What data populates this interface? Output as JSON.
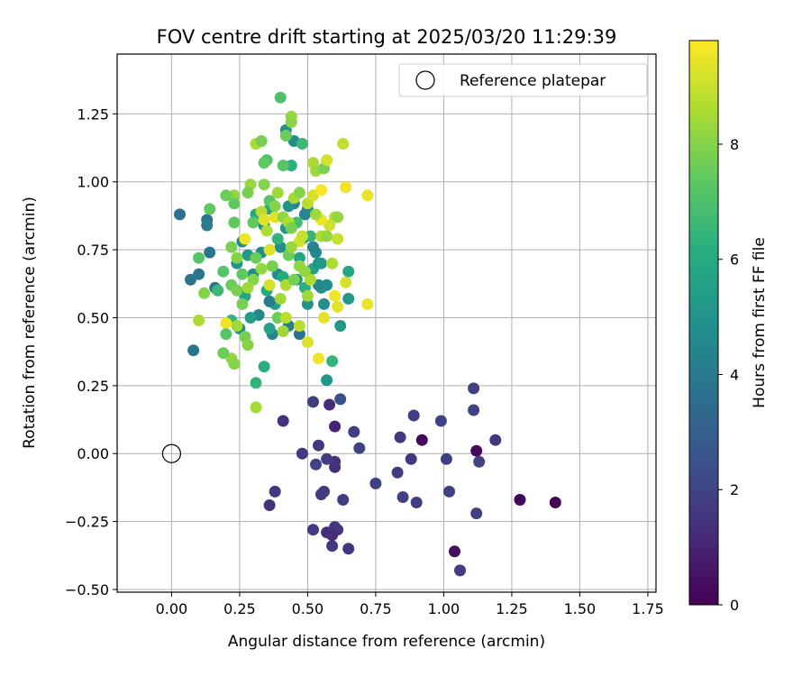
{
  "chart_data": {
    "type": "scatter",
    "title": "FOV centre drift starting at 2025/03/20 11:29:39",
    "xlabel": "Angular distance from reference (arcmin)",
    "ylabel": "Rotation from reference (arcmin)",
    "xlim": [
      -0.2,
      1.78
    ],
    "ylim": [
      -0.51,
      1.47
    ],
    "x_ticks": [
      0.0,
      0.25,
      0.5,
      0.75,
      1.0,
      1.25,
      1.5,
      1.75
    ],
    "x_tick_labels": [
      "0.00",
      "0.25",
      "0.50",
      "0.75",
      "1.00",
      "1.25",
      "1.50",
      "1.75"
    ],
    "y_ticks": [
      -0.5,
      -0.25,
      0.0,
      0.25,
      0.5,
      0.75,
      1.0,
      1.25
    ],
    "y_tick_labels": [
      "−0.50",
      "−0.25",
      "0.00",
      "0.25",
      "0.50",
      "0.75",
      "1.00",
      "1.25"
    ],
    "grid": true,
    "legend": {
      "position": "top-right",
      "entries": [
        {
          "label": "Reference platepar",
          "marker": "open-circle",
          "x": 0.0,
          "y": 0.0
        }
      ]
    },
    "colorbar": {
      "label": "Hours from first FF file",
      "range": [
        0,
        9.8
      ],
      "ticks": [
        0,
        2,
        4,
        6,
        8
      ],
      "colormap": "viridis"
    },
    "points": [
      [
        0.92,
        0.05,
        0.2
      ],
      [
        1.12,
        0.01,
        0.2
      ],
      [
        1.28,
        -0.17,
        0.2
      ],
      [
        1.41,
        -0.18,
        0.1
      ],
      [
        1.04,
        -0.36,
        0.4
      ],
      [
        1.19,
        0.05,
        1.6
      ],
      [
        1.06,
        -0.43,
        1.8
      ],
      [
        1.12,
        -0.22,
        1.9
      ],
      [
        1.13,
        -0.03,
        1.9
      ],
      [
        1.11,
        0.16,
        2.0
      ],
      [
        1.11,
        0.24,
        1.9
      ],
      [
        0.99,
        0.12,
        2.0
      ],
      [
        1.01,
        -0.02,
        1.8
      ],
      [
        1.02,
        -0.14,
        1.9
      ],
      [
        0.89,
        0.14,
        1.8
      ],
      [
        0.9,
        -0.18,
        1.8
      ],
      [
        0.88,
        -0.02,
        1.6
      ],
      [
        0.84,
        0.06,
        1.7
      ],
      [
        0.83,
        -0.07,
        1.8
      ],
      [
        0.85,
        -0.16,
        1.9
      ],
      [
        0.75,
        -0.11,
        2.0
      ],
      [
        0.69,
        0.02,
        2.0
      ],
      [
        0.67,
        0.08,
        1.8
      ],
      [
        0.63,
        -0.17,
        1.8
      ],
      [
        0.65,
        -0.35,
        1.5
      ],
      [
        0.61,
        -0.28,
        1.5
      ],
      [
        0.6,
        -0.27,
        1.6
      ],
      [
        0.59,
        -0.34,
        1.7
      ],
      [
        0.59,
        -0.3,
        1.2
      ],
      [
        0.57,
        -0.29,
        1.3
      ],
      [
        0.6,
        -0.05,
        1.3
      ],
      [
        0.6,
        -0.03,
        1.4
      ],
      [
        0.58,
        0.18,
        1.3
      ],
      [
        0.6,
        0.1,
        1.0
      ],
      [
        0.62,
        0.2,
        2.5
      ],
      [
        0.55,
        -0.15,
        1.6
      ],
      [
        0.57,
        -0.02,
        1.8
      ],
      [
        0.56,
        -0.14,
        1.7
      ],
      [
        0.54,
        0.03,
        1.6
      ],
      [
        0.53,
        -0.04,
        2.0
      ],
      [
        0.52,
        -0.28,
        1.7
      ],
      [
        0.52,
        0.19,
        1.8
      ],
      [
        0.48,
        0.0,
        1.7
      ],
      [
        0.41,
        0.12,
        1.4
      ],
      [
        0.38,
        -0.14,
        1.6
      ],
      [
        0.36,
        -0.19,
        1.5
      ],
      [
        0.03,
        0.88,
        3.7
      ],
      [
        0.07,
        0.64,
        3.8
      ],
      [
        0.08,
        0.38,
        3.8
      ],
      [
        0.1,
        0.66,
        3.8
      ],
      [
        0.13,
        0.86,
        3.8
      ],
      [
        0.13,
        0.84,
        4.1
      ],
      [
        0.14,
        0.74,
        3.8
      ],
      [
        0.16,
        0.61,
        4.0
      ],
      [
        0.17,
        0.6,
        6.6
      ],
      [
        0.57,
        0.27,
        5.2
      ],
      [
        0.59,
        0.34,
        6.4
      ],
      [
        0.62,
        0.47,
        5.2
      ],
      [
        0.65,
        0.57,
        5.2
      ],
      [
        0.65,
        0.67,
        5.8
      ],
      [
        0.57,
        0.62,
        4.8
      ],
      [
        0.55,
        0.61,
        4.9
      ],
      [
        0.54,
        0.62,
        4.6
      ],
      [
        0.56,
        0.55,
        4.7
      ],
      [
        0.53,
        0.74,
        4.5
      ],
      [
        0.52,
        0.68,
        5.6
      ],
      [
        0.54,
        0.7,
        5.0
      ],
      [
        0.52,
        0.76,
        4.4
      ],
      [
        0.5,
        0.9,
        4.6
      ],
      [
        0.49,
        0.88,
        4.4
      ],
      [
        0.48,
        0.79,
        5.0
      ],
      [
        0.47,
        0.72,
        5.7
      ],
      [
        0.46,
        0.64,
        5.0
      ],
      [
        0.45,
        0.92,
        4.4
      ],
      [
        0.44,
        1.06,
        6.2
      ],
      [
        0.43,
        0.91,
        5.0
      ],
      [
        0.42,
        0.83,
        5.2
      ],
      [
        0.42,
        1.19,
        5.0
      ],
      [
        0.4,
        0.76,
        4.7
      ],
      [
        0.39,
        0.66,
        4.8
      ],
      [
        0.38,
        0.55,
        5.4
      ],
      [
        0.37,
        0.44,
        4.4
      ],
      [
        0.36,
        0.9,
        5.6
      ],
      [
        0.36,
        0.56,
        4.2
      ],
      [
        0.36,
        0.46,
        5.6
      ],
      [
        0.35,
        0.6,
        5.8
      ],
      [
        0.34,
        0.84,
        4.6
      ],
      [
        0.33,
        0.74,
        4.8
      ],
      [
        0.32,
        0.51,
        4.6
      ],
      [
        0.31,
        0.88,
        5.8
      ],
      [
        0.3,
        0.66,
        4.7
      ],
      [
        0.29,
        0.5,
        5.5
      ],
      [
        0.28,
        0.73,
        5.2
      ],
      [
        0.27,
        0.58,
        5.6
      ],
      [
        0.26,
        0.78,
        4.6
      ],
      [
        0.25,
        0.46,
        4.9
      ],
      [
        0.24,
        0.7,
        5.0
      ],
      [
        0.22,
        0.49,
        6.4
      ],
      [
        0.45,
        1.15,
        4.8
      ],
      [
        0.43,
        0.47,
        4.1
      ],
      [
        0.47,
        0.44,
        3.6
      ],
      [
        0.5,
        0.55,
        5.0
      ],
      [
        0.55,
        0.7,
        5.2
      ],
      [
        0.49,
        0.61,
        6.2
      ],
      [
        0.51,
        0.8,
        6.5
      ],
      [
        0.46,
        0.85,
        6.8
      ],
      [
        0.41,
        0.65,
        6.0
      ],
      [
        0.39,
        0.79,
        6.4
      ],
      [
        0.34,
        0.32,
        6.2
      ],
      [
        0.31,
        0.26,
        6.4
      ],
      [
        0.4,
        1.31,
        7.0
      ],
      [
        0.44,
        1.24,
        8.3
      ],
      [
        0.44,
        1.22,
        8.1
      ],
      [
        0.42,
        1.17,
        7.6
      ],
      [
        0.48,
        1.14,
        6.6
      ],
      [
        0.31,
        1.14,
        8.6
      ],
      [
        0.33,
        1.15,
        7.8
      ],
      [
        0.35,
        1.08,
        7.0
      ],
      [
        0.34,
        1.07,
        7.4
      ],
      [
        0.41,
        1.06,
        7.2
      ],
      [
        0.52,
        1.07,
        8.6
      ],
      [
        0.53,
        1.04,
        8.4
      ],
      [
        0.56,
        1.05,
        7.8
      ],
      [
        0.57,
        1.08,
        9.2
      ],
      [
        0.63,
        1.14,
        8.9
      ],
      [
        0.64,
        0.98,
        9.6
      ],
      [
        0.72,
        0.95,
        9.5
      ],
      [
        0.6,
        0.87,
        8.8
      ],
      [
        0.58,
        0.84,
        9.1
      ],
      [
        0.61,
        0.79,
        9.0
      ],
      [
        0.59,
        0.7,
        8.6
      ],
      [
        0.64,
        0.63,
        9.2
      ],
      [
        0.6,
        0.58,
        9.6
      ],
      [
        0.61,
        0.54,
        9.4
      ],
      [
        0.72,
        0.55,
        9.5
      ],
      [
        0.56,
        0.5,
        9.4
      ],
      [
        0.54,
        0.35,
        9.6
      ],
      [
        0.5,
        0.41,
        9.3
      ],
      [
        0.47,
        0.47,
        8.8
      ],
      [
        0.47,
        0.78,
        9.2
      ],
      [
        0.42,
        0.62,
        8.6
      ],
      [
        0.45,
        0.64,
        7.8
      ],
      [
        0.43,
        0.73,
        7.6
      ],
      [
        0.44,
        0.76,
        8.3
      ],
      [
        0.45,
        0.94,
        8.5
      ],
      [
        0.47,
        0.96,
        8.0
      ],
      [
        0.5,
        0.92,
        8.8
      ],
      [
        0.52,
        0.95,
        9.2
      ],
      [
        0.55,
        0.97,
        9.7
      ],
      [
        0.55,
        0.86,
        9.6
      ],
      [
        0.53,
        0.88,
        8.4
      ],
      [
        0.38,
        0.87,
        9.4
      ],
      [
        0.33,
        0.89,
        8.8
      ],
      [
        0.34,
        0.99,
        8.0
      ],
      [
        0.29,
        0.99,
        8.3
      ],
      [
        0.28,
        0.96,
        7.8
      ],
      [
        0.23,
        0.95,
        8.2
      ],
      [
        0.2,
        0.95,
        7.6
      ],
      [
        0.23,
        0.92,
        7.4
      ],
      [
        0.19,
        0.67,
        7.2
      ],
      [
        0.22,
        0.62,
        7.6
      ],
      [
        0.26,
        0.55,
        7.8
      ],
      [
        0.24,
        0.47,
        8.4
      ],
      [
        0.2,
        0.48,
        9.6
      ],
      [
        0.1,
        0.49,
        8.6
      ],
      [
        0.12,
        0.59,
        8.0
      ],
      [
        0.1,
        0.72,
        7.2
      ],
      [
        0.14,
        0.9,
        7.4
      ],
      [
        0.23,
        0.85,
        7.4
      ],
      [
        0.22,
        0.76,
        7.8
      ],
      [
        0.27,
        0.79,
        9.6
      ],
      [
        0.3,
        0.64,
        8.0
      ],
      [
        0.28,
        0.61,
        8.4
      ],
      [
        0.27,
        0.43,
        7.8
      ],
      [
        0.28,
        0.4,
        8.0
      ],
      [
        0.22,
        0.35,
        8.2
      ],
      [
        0.23,
        0.33,
        8.0
      ],
      [
        0.19,
        0.37,
        7.6
      ],
      [
        0.2,
        0.44,
        7.2
      ],
      [
        0.31,
        0.17,
        8.5
      ],
      [
        0.35,
        0.82,
        8.6
      ],
      [
        0.36,
        0.75,
        9.3
      ],
      [
        0.37,
        0.69,
        7.8
      ],
      [
        0.4,
        0.57,
        8.4
      ],
      [
        0.39,
        0.5,
        7.6
      ],
      [
        0.41,
        0.45,
        8.4
      ],
      [
        0.42,
        0.5,
        8.8
      ],
      [
        0.36,
        0.62,
        9.2
      ],
      [
        0.36,
        0.93,
        7.2
      ],
      [
        0.38,
        0.91,
        8.0
      ],
      [
        0.33,
        0.68,
        8.2
      ],
      [
        0.31,
        0.72,
        7.6
      ],
      [
        0.26,
        0.66,
        7.4
      ],
      [
        0.24,
        0.6,
        7.8
      ],
      [
        0.24,
        0.72,
        8.0
      ],
      [
        0.3,
        0.85,
        7.4
      ],
      [
        0.34,
        0.86,
        9.4
      ],
      [
        0.47,
        0.69,
        8.2
      ],
      [
        0.41,
        0.87,
        8.2
      ],
      [
        0.43,
        0.85,
        8.6
      ],
      [
        0.44,
        0.83,
        7.8
      ],
      [
        0.48,
        0.8,
        9.0
      ],
      [
        0.51,
        0.64,
        8.6
      ],
      [
        0.5,
        0.58,
        8.4
      ],
      [
        0.39,
        0.96,
        8.4
      ],
      [
        0.49,
        0.67,
        8.2
      ],
      [
        0.55,
        0.8,
        8.6
      ],
      [
        0.57,
        0.8,
        8.2
      ],
      [
        0.61,
        0.87,
        8.2
      ]
    ]
  }
}
